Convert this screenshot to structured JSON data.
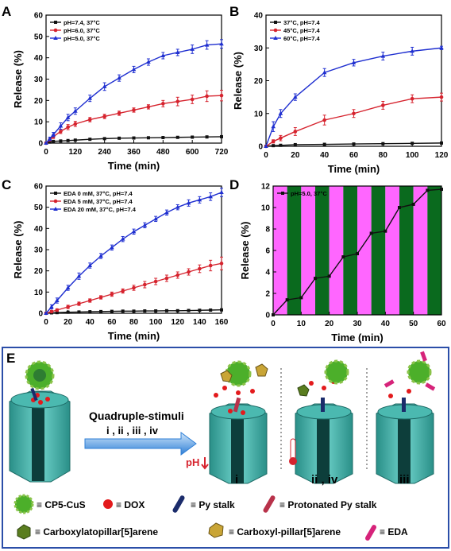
{
  "panels": {
    "A": {
      "letter": "A"
    },
    "B": {
      "letter": "B"
    },
    "C": {
      "letter": "C"
    },
    "D": {
      "letter": "D"
    },
    "E": {
      "letter": "E"
    }
  },
  "colors": {
    "black": "#111111",
    "red": "#d6232e",
    "blue": "#1f2fd0",
    "magenta": "#ff66ff",
    "green": "#0a6a1e",
    "panelE_border": "#2b4ea8",
    "arrow": "#2f7fd6"
  },
  "chart_data": [
    {
      "id": "A",
      "type": "line",
      "xlabel": "Time (min)",
      "ylabel": "Release (%)",
      "xlim": [
        0,
        720
      ],
      "ylim": [
        0,
        60
      ],
      "xticks": [
        0,
        120,
        240,
        360,
        480,
        600,
        720
      ],
      "yticks": [
        0,
        10,
        20,
        30,
        40,
        50,
        60
      ],
      "legend_position": "top-left",
      "series": [
        {
          "name": "pH=7.4, 37°C",
          "color": "#111111",
          "marker": "square",
          "x": [
            0,
            15,
            30,
            60,
            90,
            120,
            180,
            240,
            300,
            360,
            420,
            480,
            540,
            600,
            660,
            720
          ],
          "y": [
            0,
            0.5,
            0.8,
            1.0,
            1.2,
            1.4,
            1.8,
            2.1,
            2.3,
            2.4,
            2.5,
            2.6,
            2.7,
            2.8,
            2.9,
            3.0
          ]
        },
        {
          "name": "pH=6.0, 37°C",
          "color": "#d6232e",
          "marker": "circle",
          "x": [
            0,
            15,
            30,
            60,
            90,
            120,
            180,
            240,
            300,
            360,
            420,
            480,
            540,
            600,
            660,
            720
          ],
          "y": [
            0,
            1.5,
            3.0,
            5.5,
            7.5,
            9.0,
            11.0,
            12.5,
            14.0,
            15.5,
            17.0,
            18.5,
            19.5,
            20.5,
            22.0,
            22.3
          ],
          "err": [
            0,
            0.5,
            0.8,
            1.0,
            1.2,
            1.2,
            1.0,
            1.0,
            1.0,
            1.0,
            1.0,
            1.5,
            2.0,
            2.0,
            2.5,
            2.5
          ]
        },
        {
          "name": "pH=5.0, 37°C",
          "color": "#1f2fd0",
          "marker": "triangle",
          "x": [
            0,
            15,
            30,
            60,
            90,
            120,
            180,
            240,
            300,
            360,
            420,
            480,
            540,
            600,
            660,
            720
          ],
          "y": [
            0,
            2.0,
            4.0,
            8.0,
            12.0,
            15.0,
            21.0,
            26.5,
            30.5,
            34.5,
            38.0,
            41.0,
            42.5,
            44.0,
            46.0,
            46.5
          ],
          "err": [
            0,
            0.8,
            1.0,
            1.5,
            1.5,
            1.5,
            1.5,
            1.8,
            1.5,
            1.5,
            1.5,
            1.5,
            1.5,
            2.0,
            2.0,
            2.0
          ]
        }
      ]
    },
    {
      "id": "B",
      "type": "line",
      "xlabel": "Time (min)",
      "ylabel": "Release (%)",
      "xlim": [
        0,
        120
      ],
      "ylim": [
        0,
        40
      ],
      "xticks": [
        0,
        20,
        40,
        60,
        80,
        100,
        120
      ],
      "yticks": [
        0,
        10,
        20,
        30,
        40
      ],
      "legend_position": "top-left",
      "series": [
        {
          "name": "37°C, pH=7.4",
          "color": "#111111",
          "marker": "square",
          "x": [
            0,
            5,
            10,
            20,
            40,
            60,
            80,
            100,
            120
          ],
          "y": [
            0,
            0.2,
            0.3,
            0.5,
            0.6,
            0.7,
            0.8,
            0.9,
            1.0
          ]
        },
        {
          "name": "45°C, pH=7.4",
          "color": "#d6232e",
          "marker": "circle",
          "x": [
            0,
            5,
            10,
            20,
            40,
            60,
            80,
            100,
            120
          ],
          "y": [
            0,
            1.5,
            2.5,
            4.5,
            8.0,
            10.0,
            12.5,
            14.5,
            15.0
          ],
          "err": [
            0,
            0.5,
            0.8,
            1.2,
            1.5,
            1.2,
            1.2,
            1.2,
            1.2
          ]
        },
        {
          "name": "60°C, pH=7.4",
          "color": "#1f2fd0",
          "marker": "triangle",
          "x": [
            0,
            5,
            10,
            20,
            40,
            60,
            80,
            100,
            120
          ],
          "y": [
            0,
            6.0,
            10.0,
            15.0,
            22.5,
            25.5,
            27.5,
            29.0,
            30.0
          ],
          "err": [
            0,
            1.5,
            1.2,
            1.0,
            1.2,
            1.0,
            1.2,
            1.2,
            0.5
          ]
        }
      ]
    },
    {
      "id": "C",
      "type": "line",
      "xlabel": "Time (min)",
      "ylabel": "Release (%)",
      "xlim": [
        0,
        160
      ],
      "ylim": [
        0,
        60
      ],
      "xticks": [
        0,
        20,
        40,
        60,
        80,
        100,
        120,
        140,
        160
      ],
      "yticks": [
        0,
        10,
        20,
        30,
        40,
        50,
        60
      ],
      "legend_position": "top-left",
      "series": [
        {
          "name": "EDA  0 mM, 37°C, pH=7.4",
          "color": "#111111",
          "marker": "square",
          "x": [
            0,
            5,
            10,
            20,
            30,
            40,
            50,
            60,
            70,
            80,
            90,
            100,
            110,
            120,
            130,
            140,
            150,
            160
          ],
          "y": [
            0,
            0.2,
            0.3,
            0.5,
            0.6,
            0.7,
            0.8,
            0.9,
            1.0,
            1.0,
            1.1,
            1.1,
            1.2,
            1.2,
            1.3,
            1.4,
            1.5,
            1.6
          ]
        },
        {
          "name": "EDA  5 mM, 37°C, pH=7.4",
          "color": "#d6232e",
          "marker": "circle",
          "x": [
            0,
            5,
            10,
            20,
            30,
            40,
            50,
            60,
            70,
            80,
            90,
            100,
            110,
            120,
            130,
            140,
            150,
            160
          ],
          "y": [
            0,
            0.8,
            1.5,
            3.0,
            4.5,
            6.0,
            7.5,
            9.0,
            10.5,
            12.0,
            13.5,
            15.0,
            16.5,
            18.0,
            19.5,
            21.0,
            22.5,
            23.5
          ],
          "err": [
            0,
            0.5,
            0.6,
            0.8,
            0.8,
            0.8,
            0.8,
            1.0,
            1.0,
            1.2,
            1.5,
            1.5,
            1.5,
            1.5,
            1.5,
            1.8,
            2.5,
            3.0
          ]
        },
        {
          "name": "EDA 20 mM, 37°C, pH=7.4",
          "color": "#1f2fd0",
          "marker": "triangle",
          "x": [
            0,
            5,
            10,
            20,
            30,
            40,
            50,
            60,
            70,
            80,
            90,
            100,
            110,
            120,
            130,
            140,
            150,
            160
          ],
          "y": [
            0,
            3.0,
            6.0,
            12.0,
            17.5,
            22.5,
            27.0,
            31.0,
            35.0,
            38.5,
            41.5,
            44.5,
            47.5,
            50.0,
            52.0,
            53.5,
            55.0,
            57.0
          ],
          "err": [
            0,
            1.0,
            1.2,
            1.2,
            1.5,
            1.2,
            1.2,
            1.2,
            1.2,
            1.2,
            1.2,
            1.2,
            1.2,
            1.2,
            1.5,
            1.5,
            1.8,
            2.0
          ]
        }
      ]
    },
    {
      "id": "D",
      "type": "line",
      "xlabel": "Time (min)",
      "ylabel": "Release (%)",
      "xlim": [
        0,
        60
      ],
      "ylim": [
        0,
        12
      ],
      "xticks": [
        0,
        10,
        20,
        30,
        40,
        50,
        60
      ],
      "yticks": [
        0,
        2,
        4,
        6,
        8,
        10,
        12
      ],
      "legend_position": "top-left",
      "background_bands": {
        "width": 5,
        "start_color": "magenta",
        "colors": [
          "#ff66ff",
          "#0a6a1e"
        ]
      },
      "series": [
        {
          "name": "pH=5.0, 37°C",
          "color": "#111111",
          "marker": "square",
          "x": [
            0,
            5,
            10,
            15,
            20,
            25,
            30,
            35,
            40,
            45,
            50,
            55,
            60
          ],
          "y": [
            0,
            1.4,
            1.6,
            3.4,
            3.6,
            5.4,
            5.7,
            7.6,
            7.8,
            10.0,
            10.3,
            11.6,
            11.7
          ]
        }
      ]
    }
  ],
  "scheme": {
    "arrow_label": "Quadruple-stimuli",
    "arrow_sublabel": "i , ii , iii , iv",
    "ph_label": "pH",
    "conditions": [
      "i",
      "ii , iv",
      "iii"
    ],
    "legend": [
      {
        "icon": "cp5-cus-icon",
        "text": "≡  CP5-CuS"
      },
      {
        "icon": "dox-icon",
        "text": "≡  DOX"
      },
      {
        "icon": "py-stalk-icon",
        "text": "≡  Py stalk"
      },
      {
        "icon": "protonated-py-stalk-icon",
        "text": "≡  Protonated Py stalk"
      },
      {
        "icon": "carboxylatopillar-icon",
        "text": "≡  Carboxylatopillar[5]arene"
      },
      {
        "icon": "carboxyl-pillar-icon",
        "text": "≡  Carboxyl-pillar[5]arene"
      },
      {
        "icon": "eda-icon",
        "text": "≡  EDA"
      }
    ]
  }
}
